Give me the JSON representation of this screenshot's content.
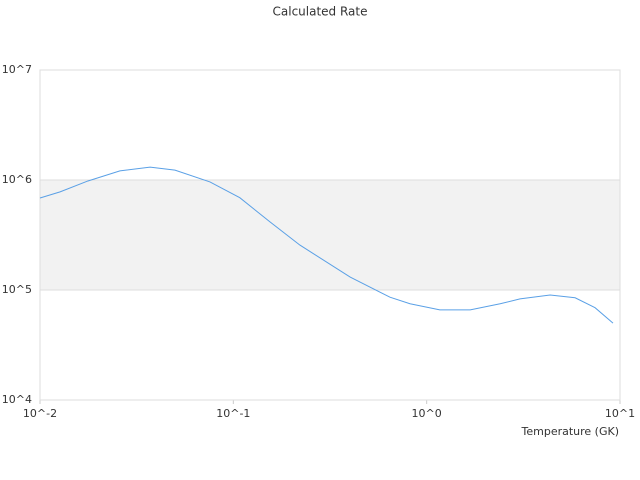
{
  "chart_data": {
    "type": "line",
    "title": "Calculated Rate",
    "x_label": "Temperature (GK)",
    "xscale": "log",
    "yscale": "log",
    "grid": true,
    "band": {
      "from": 100000,
      "to": 1000000,
      "color": "#f2f2f2"
    },
    "xlim": [
      0.01,
      10
    ],
    "ylim": [
      10000,
      10000000
    ],
    "xticks": [
      {
        "value": 0.01,
        "label": "10^-2"
      },
      {
        "value": 0.1,
        "label": "10^-1"
      },
      {
        "value": 1,
        "label": "10^0"
      },
      {
        "value": 10,
        "label": "10^1"
      }
    ],
    "yticks": [
      {
        "value": 10000,
        "label": "10^4"
      },
      {
        "value": 100000,
        "label": "10^5"
      },
      {
        "value": 1000000,
        "label": "10^6"
      },
      {
        "value": 10000000,
        "label": "10^7"
      }
    ],
    "x": [
      0.01,
      0.0127,
      0.0177,
      0.0259,
      0.0371,
      0.0499,
      0.0757,
      0.108,
      0.155,
      0.221,
      0.402,
      0.646,
      0.82,
      1.17,
      1.68,
      2.4,
      3.04,
      4.35,
      5.86,
      7.43,
      9.2
    ],
    "series": [
      {
        "color": "#5aa0e6",
        "values": [
          686000,
          780000,
          980000,
          1210000,
          1310000,
          1230000,
          960000,
          690000,
          415000,
          256000,
          131000,
          86000,
          75000,
          66000,
          66000,
          75000,
          83000,
          90000,
          85000,
          69000,
          50000
        ]
      }
    ]
  }
}
